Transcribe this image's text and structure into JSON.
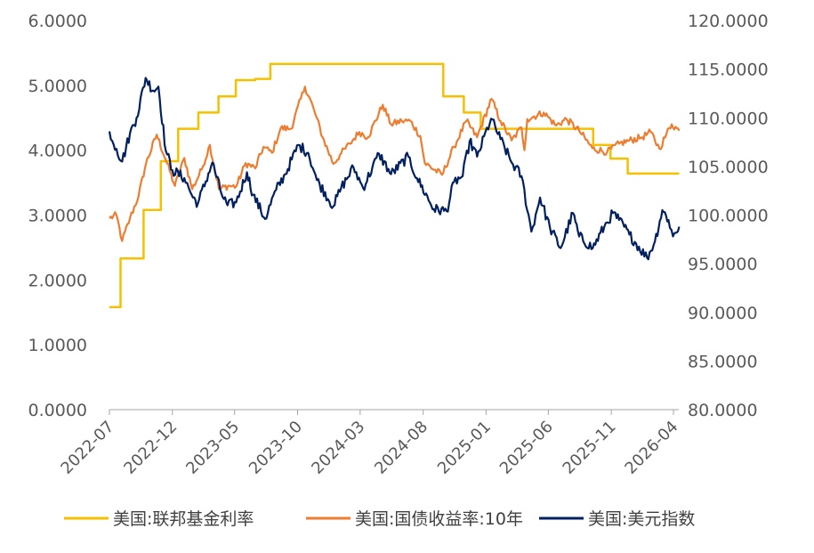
{
  "chart_data": {
    "type": "line",
    "y_left": {
      "ylim": [
        0,
        6
      ],
      "ticks": [
        "0.0000",
        "1.0000",
        "2.0000",
        "3.0000",
        "4.0000",
        "5.0000",
        "6.0000"
      ]
    },
    "y_right": {
      "ylim": [
        80,
        120
      ],
      "ticks": [
        "80.0000",
        "85.0000",
        "90.0000",
        "95.0000",
        "100.0000",
        "105.0000",
        "110.0000",
        "115.0000",
        "120.0000"
      ]
    },
    "x_range": [
      "2022-07",
      "2026-04"
    ],
    "x_ticks": [
      "2022-07",
      "2022-12",
      "2023-05",
      "2023-10",
      "2024-03",
      "2024-08",
      "2025-01",
      "2025-06",
      "2025-11",
      "2026-04"
    ],
    "grid": false,
    "legend_position": "bottom",
    "series": [
      {
        "name": "美国:联邦基金利率",
        "axis": "left",
        "color": "#F5C000",
        "style": "step",
        "points": [
          [
            "2022-07-01",
            1.58
          ],
          [
            "2022-07-28",
            2.33
          ],
          [
            "2022-09-22",
            3.08
          ],
          [
            "2022-11-03",
            3.83
          ],
          [
            "2022-12-15",
            4.33
          ],
          [
            "2023-02-02",
            4.58
          ],
          [
            "2023-03-23",
            4.83
          ],
          [
            "2023-05-04",
            5.08
          ],
          [
            "2023-06-20",
            5.1
          ],
          [
            "2023-07-27",
            5.33
          ],
          [
            "2024-09-19",
            4.83
          ],
          [
            "2024-11-08",
            4.58
          ],
          [
            "2024-12-19",
            4.33
          ],
          [
            "2025-09-18",
            4.08
          ],
          [
            "2025-10-30",
            3.87
          ],
          [
            "2025-12-11",
            3.64
          ],
          [
            "2026-04-15",
            3.64
          ]
        ]
      },
      {
        "name": "美国:国债收益率:10年",
        "axis": "left",
        "color": "#ED7D31",
        "points": [
          [
            "2022-07-01",
            2.95
          ],
          [
            "2022-07-18",
            3.0
          ],
          [
            "2022-08-01",
            2.6
          ],
          [
            "2022-08-20",
            2.95
          ],
          [
            "2022-09-10",
            3.3
          ],
          [
            "2022-09-28",
            3.8
          ],
          [
            "2022-10-24",
            4.24
          ],
          [
            "2022-11-15",
            3.85
          ],
          [
            "2022-12-07",
            3.45
          ],
          [
            "2022-12-30",
            3.88
          ],
          [
            "2023-01-18",
            3.4
          ],
          [
            "2023-02-10",
            3.7
          ],
          [
            "2023-03-02",
            4.08
          ],
          [
            "2023-03-24",
            3.4
          ],
          [
            "2023-04-15",
            3.45
          ],
          [
            "2023-05-05",
            3.44
          ],
          [
            "2023-05-28",
            3.8
          ],
          [
            "2023-06-20",
            3.72
          ],
          [
            "2023-07-10",
            4.05
          ],
          [
            "2023-07-31",
            3.96
          ],
          [
            "2023-08-21",
            4.34
          ],
          [
            "2023-09-15",
            4.33
          ],
          [
            "2023-10-19",
            4.98
          ],
          [
            "2023-11-10",
            4.62
          ],
          [
            "2023-12-01",
            4.2
          ],
          [
            "2023-12-27",
            3.79
          ],
          [
            "2024-01-15",
            3.95
          ],
          [
            "2024-02-05",
            4.1
          ],
          [
            "2024-02-28",
            4.28
          ],
          [
            "2024-03-20",
            4.2
          ],
          [
            "2024-04-25",
            4.7
          ],
          [
            "2024-05-15",
            4.4
          ],
          [
            "2024-06-10",
            4.45
          ],
          [
            "2024-07-01",
            4.45
          ],
          [
            "2024-07-25",
            4.22
          ],
          [
            "2024-08-05",
            3.8
          ],
          [
            "2024-09-16",
            3.62
          ],
          [
            "2024-10-15",
            4.05
          ],
          [
            "2024-11-14",
            4.45
          ],
          [
            "2024-12-10",
            4.2
          ],
          [
            "2025-01-14",
            4.79
          ],
          [
            "2025-02-05",
            4.45
          ],
          [
            "2025-03-04",
            4.15
          ],
          [
            "2025-03-28",
            4.35
          ],
          [
            "2025-04-04",
            4.0
          ],
          [
            "2025-04-11",
            4.48
          ],
          [
            "2025-05-21",
            4.58
          ],
          [
            "2025-06-20",
            4.38
          ],
          [
            "2025-07-15",
            4.48
          ],
          [
            "2025-08-15",
            4.3
          ],
          [
            "2025-09-16",
            4.03
          ],
          [
            "2025-10-22",
            3.97
          ],
          [
            "2025-11-20",
            4.1
          ],
          [
            "2025-12-15",
            4.15
          ],
          [
            "2026-01-15",
            4.2
          ],
          [
            "2026-02-05",
            4.28
          ],
          [
            "2026-02-26",
            4.02
          ],
          [
            "2026-03-15",
            4.25
          ],
          [
            "2026-03-28",
            4.4
          ],
          [
            "2026-04-15",
            4.3
          ]
        ]
      },
      {
        "name": "美国:美元指数",
        "axis": "right",
        "color": "#002060",
        "points": [
          [
            "2022-07-01",
            108.6
          ],
          [
            "2022-07-18",
            106.8
          ],
          [
            "2022-08-01",
            105.5
          ],
          [
            "2022-08-20",
            108.4
          ],
          [
            "2022-09-05",
            110.0
          ],
          [
            "2022-09-27",
            114.1
          ],
          [
            "2022-10-15",
            112.8
          ],
          [
            "2022-10-28",
            113.2
          ],
          [
            "2022-11-15",
            106.6
          ],
          [
            "2022-12-01",
            104.6
          ],
          [
            "2022-12-30",
            103.8
          ],
          [
            "2023-01-20",
            101.8
          ],
          [
            "2023-02-01",
            101.2
          ],
          [
            "2023-03-08",
            105.4
          ],
          [
            "2023-03-30",
            102.2
          ],
          [
            "2023-04-14",
            101.0
          ],
          [
            "2023-05-05",
            101.3
          ],
          [
            "2023-05-31",
            104.4
          ],
          [
            "2023-06-15",
            102.1
          ],
          [
            "2023-07-14",
            99.6
          ],
          [
            "2023-08-10",
            102.6
          ],
          [
            "2023-09-01",
            104.2
          ],
          [
            "2023-10-03",
            107.2
          ],
          [
            "2023-10-27",
            106.4
          ],
          [
            "2023-11-17",
            103.6
          ],
          [
            "2023-12-27",
            100.9
          ],
          [
            "2024-01-15",
            102.8
          ],
          [
            "2024-02-14",
            104.9
          ],
          [
            "2024-03-08",
            102.8
          ],
          [
            "2024-04-16",
            106.3
          ],
          [
            "2024-05-15",
            104.2
          ],
          [
            "2024-06-26",
            106.0
          ],
          [
            "2024-07-17",
            103.8
          ],
          [
            "2024-08-27",
            100.6
          ],
          [
            "2024-09-27",
            100.4
          ],
          [
            "2024-10-15",
            103.4
          ],
          [
            "2024-11-05",
            104.0
          ],
          [
            "2024-11-22",
            107.6
          ],
          [
            "2024-12-10",
            106.0
          ],
          [
            "2025-01-13",
            109.9
          ],
          [
            "2025-02-05",
            107.8
          ],
          [
            "2025-03-04",
            105.4
          ],
          [
            "2025-03-28",
            104.0
          ],
          [
            "2025-04-21",
            98.3
          ],
          [
            "2025-05-12",
            101.8
          ],
          [
            "2025-06-05",
            98.7
          ],
          [
            "2025-07-01",
            96.6
          ],
          [
            "2025-07-31",
            100.2
          ],
          [
            "2025-08-15",
            97.8
          ],
          [
            "2025-09-17",
            96.6
          ],
          [
            "2025-10-15",
            98.8
          ],
          [
            "2025-11-05",
            100.2
          ],
          [
            "2025-11-20",
            99.5
          ],
          [
            "2025-12-15",
            98.0
          ],
          [
            "2026-01-27",
            95.6
          ],
          [
            "2026-02-15",
            97.3
          ],
          [
            "2026-03-05",
            100.5
          ],
          [
            "2026-03-20",
            99.5
          ],
          [
            "2026-03-31",
            97.8
          ],
          [
            "2026-04-15",
            98.8
          ]
        ]
      }
    ]
  }
}
